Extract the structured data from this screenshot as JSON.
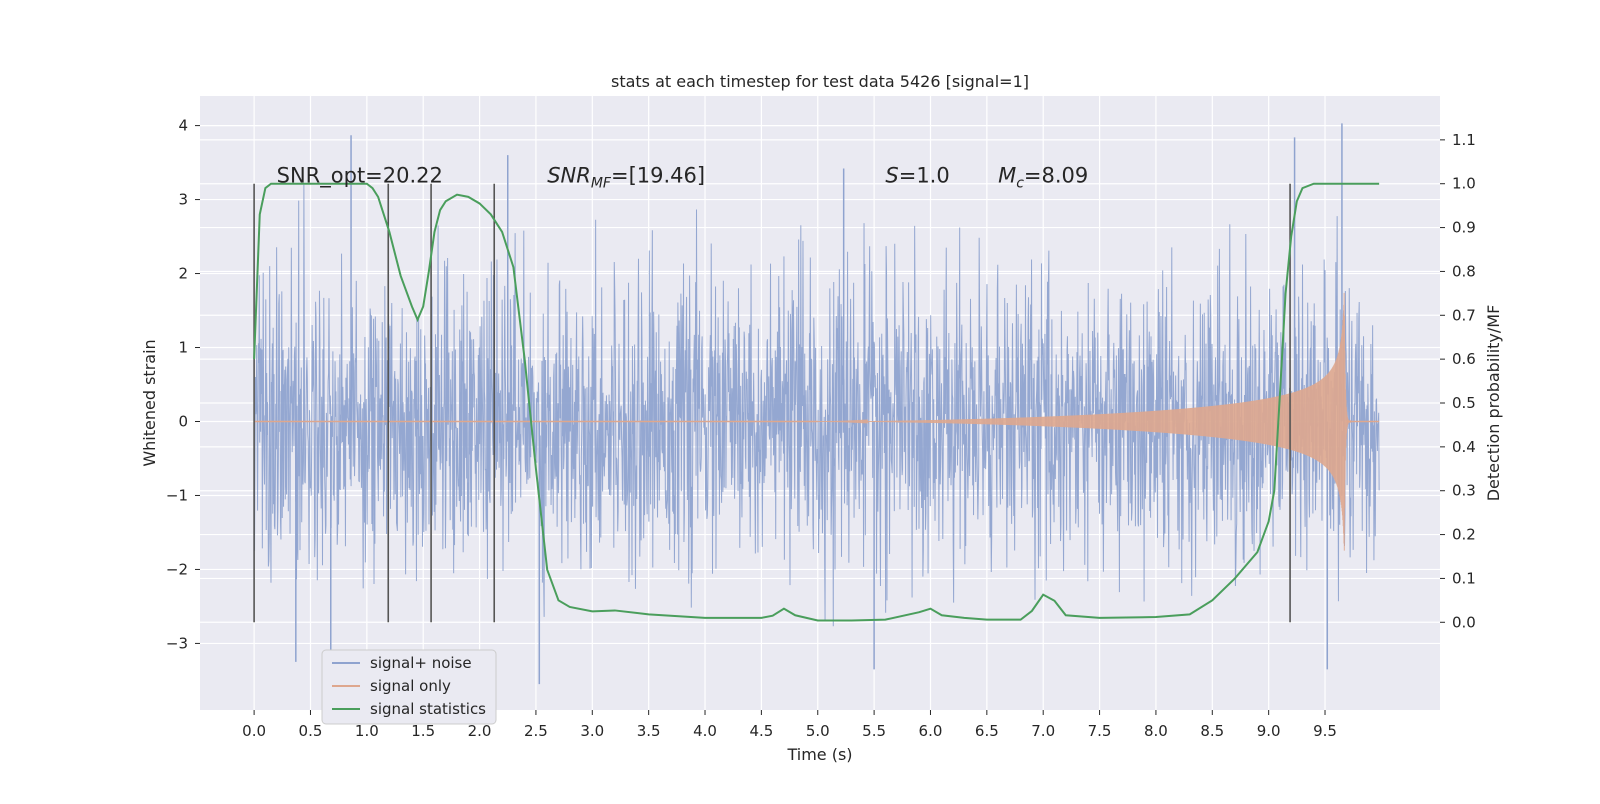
{
  "chart_data": {
    "type": "line",
    "title": "stats at each timestep for test data 5426 [signal=1]",
    "xlabel": "Time (s)",
    "ylabel": "Whitened strain",
    "y2label": "Detection probability/MF",
    "xlim": [
      -0.48,
      10.52
    ],
    "ylim": [
      -3.9,
      4.4
    ],
    "y2lim": [
      -0.2,
      1.2
    ],
    "xticks": [
      0.0,
      0.5,
      1.0,
      1.5,
      2.0,
      2.5,
      3.0,
      3.5,
      4.0,
      4.5,
      5.0,
      5.5,
      6.0,
      6.5,
      7.0,
      7.5,
      8.0,
      8.5,
      9.0,
      9.5
    ],
    "xtick_labels": [
      "0.0",
      "0.5",
      "1.0",
      "1.5",
      "2.0",
      "2.5",
      "3.0",
      "3.5",
      "4.0",
      "4.5",
      "5.0",
      "5.5",
      "6.0",
      "6.5",
      "7.0",
      "7.5",
      "8.0",
      "8.5",
      "9.0",
      "9.5"
    ],
    "yticks": [
      -3,
      -2,
      -1,
      0,
      1,
      2,
      3,
      4
    ],
    "ytick_labels": [
      "−3",
      "−2",
      "−1",
      "0",
      "1",
      "2",
      "3",
      "4"
    ],
    "y2ticks": [
      0.0,
      0.1,
      0.2,
      0.3,
      0.4,
      0.5,
      0.6,
      0.7,
      0.8,
      0.9,
      1.0,
      1.1
    ],
    "y2tick_labels": [
      "0.0",
      "0.1",
      "0.2",
      "0.3",
      "0.4",
      "0.5",
      "0.6",
      "0.7",
      "0.8",
      "0.9",
      "1.0",
      "1.1"
    ],
    "grid": true,
    "legend_position": "lower-left",
    "annotations": [
      {
        "prefix": "SNR_opt=20.22",
        "sub": "",
        "suffix": "",
        "x": 0.2,
        "y2": 1.0
      },
      {
        "prefix": "SNR",
        "sub": "MF",
        "suffix": "=[19.46]",
        "x": 2.6,
        "y2": 1.0
      },
      {
        "prefix": "S",
        "sub": "",
        "suffix": "=1.0",
        "x": 5.6,
        "y2": 1.0
      },
      {
        "prefix": "M",
        "sub": "c",
        "suffix": "=8.09",
        "x": 6.6,
        "y2": 1.0
      }
    ],
    "vertical_markers": {
      "x": [
        0.0,
        1.19,
        1.57,
        2.13,
        9.19
      ],
      "y2_range": [
        0.0,
        1.0
      ],
      "color": "#555555"
    },
    "series": [
      {
        "name": "signal+ noise",
        "axis": "left",
        "color": "#8fa3cf",
        "t_range": [
          0.0,
          9.98
        ],
        "noise_sigma": 0.95,
        "peaks": [
          {
            "x": 0.86,
            "y": 3.87
          },
          {
            "x": 2.25,
            "y": 3.6
          },
          {
            "x": 5.23,
            "y": 3.42
          },
          {
            "x": 9.23,
            "y": 3.84
          },
          {
            "x": 9.65,
            "y": 4.03
          },
          {
            "x": 0.68,
            "y": -3.12
          },
          {
            "x": 2.53,
            "y": -3.55
          },
          {
            "x": 5.5,
            "y": -3.35
          },
          {
            "x": 9.52,
            "y": -3.35
          },
          {
            "x": 0.37,
            "y": -3.25
          }
        ]
      },
      {
        "name": "signal only",
        "axis": "left",
        "color": "#dea78e",
        "chirp": {
          "t_start": 5.0,
          "t_merge": 9.67,
          "t_end": 9.98,
          "peak_amplitude": 2.0,
          "late_amplitude": 0.25
        }
      },
      {
        "name": "signal statistics",
        "axis": "right",
        "color": "#4a9e5c",
        "x": [
          0.0,
          0.05,
          0.1,
          0.15,
          0.2,
          0.3,
          0.5,
          0.7,
          0.9,
          1.0,
          1.05,
          1.1,
          1.2,
          1.3,
          1.4,
          1.45,
          1.5,
          1.55,
          1.6,
          1.65,
          1.7,
          1.8,
          1.9,
          2.0,
          2.1,
          2.2,
          2.3,
          2.4,
          2.5,
          2.6,
          2.7,
          2.8,
          3.0,
          3.2,
          3.5,
          4.0,
          4.5,
          4.6,
          4.7,
          4.8,
          5.0,
          5.3,
          5.6,
          5.9,
          6.0,
          6.1,
          6.3,
          6.5,
          6.8,
          6.9,
          7.0,
          7.1,
          7.2,
          7.5,
          8.0,
          8.3,
          8.5,
          8.7,
          8.9,
          9.0,
          9.05,
          9.1,
          9.15,
          9.2,
          9.25,
          9.3,
          9.4,
          9.5,
          9.7,
          9.98
        ],
        "y": [
          0.6,
          0.93,
          0.99,
          1.0,
          1.0,
          1.0,
          1.0,
          1.0,
          1.0,
          1.0,
          0.99,
          0.97,
          0.89,
          0.79,
          0.72,
          0.69,
          0.72,
          0.8,
          0.89,
          0.94,
          0.96,
          0.975,
          0.97,
          0.955,
          0.93,
          0.89,
          0.81,
          0.6,
          0.35,
          0.12,
          0.05,
          0.035,
          0.025,
          0.027,
          0.018,
          0.01,
          0.01,
          0.015,
          0.031,
          0.016,
          0.004,
          0.004,
          0.006,
          0.023,
          0.031,
          0.016,
          0.01,
          0.006,
          0.006,
          0.026,
          0.063,
          0.049,
          0.016,
          0.01,
          0.012,
          0.018,
          0.05,
          0.1,
          0.16,
          0.23,
          0.3,
          0.52,
          0.75,
          0.88,
          0.96,
          0.99,
          1.0,
          1.0,
          1.0,
          1.0
        ]
      }
    ]
  }
}
